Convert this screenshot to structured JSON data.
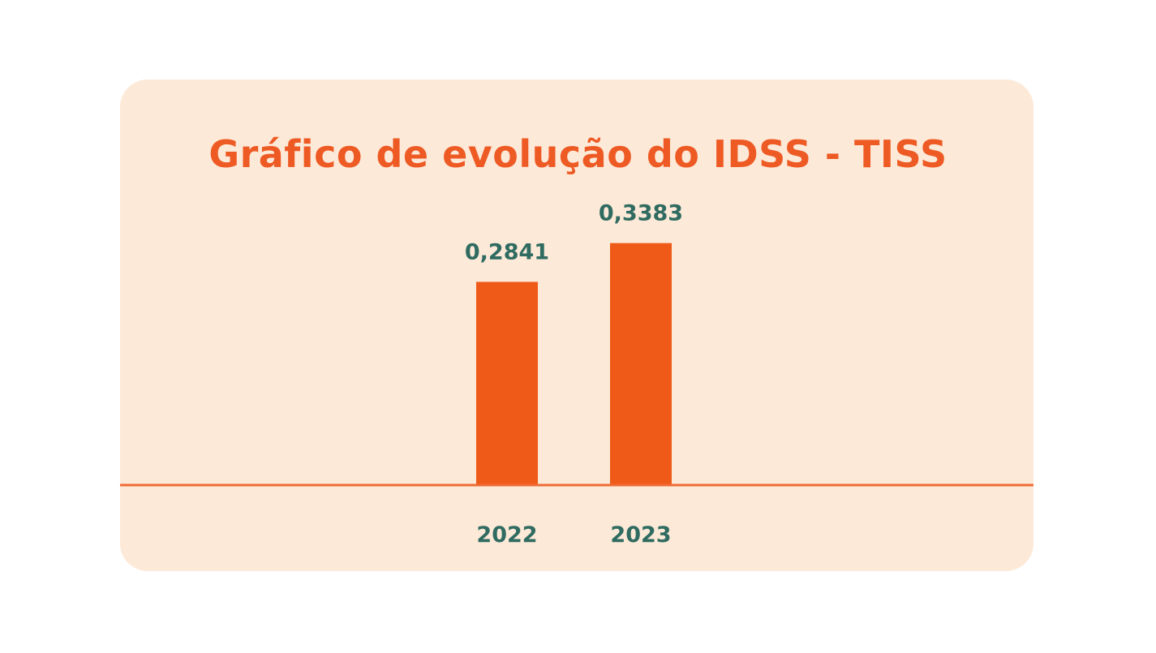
{
  "chart_data": {
    "type": "bar",
    "title": "Gráfico de evolução do IDSS - TISS",
    "categories": [
      "2022",
      "2023"
    ],
    "values": [
      0.2841,
      0.3383
    ],
    "value_labels": [
      "0,2841",
      "0,3383"
    ],
    "xlabel": "",
    "ylabel": "",
    "ylim": [
      0,
      0.44
    ],
    "grid": false,
    "legend": "none"
  },
  "colors": {
    "card_background": "#fde9d8",
    "bar": "#ef5a18",
    "title": "#ee5a24",
    "labels": "#2f6b60",
    "baseline": "#ef6a36"
  }
}
